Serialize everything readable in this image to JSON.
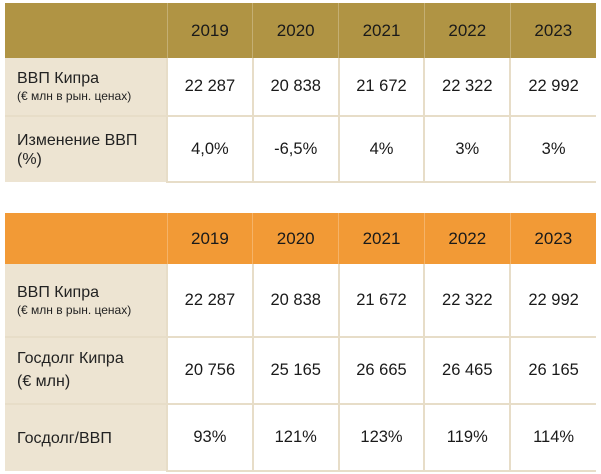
{
  "table1": {
    "years": [
      "2019",
      "2020",
      "2021",
      "2022",
      "2023"
    ],
    "rows": [
      {
        "label": "ВВП Кипра",
        "sublabel": "(€ млн в рын. ценах)",
        "values": [
          "22 287",
          "20 838",
          "21 672",
          "22 322",
          "22 992"
        ]
      },
      {
        "label": "Изменение ВВП (%)",
        "sublabel": "",
        "values": [
          "4,0%",
          "-6,5%",
          "4%",
          "3%",
          "3%"
        ]
      }
    ]
  },
  "table2": {
    "years": [
      "2019",
      "2020",
      "2021",
      "2022",
      "2023"
    ],
    "rows": [
      {
        "label": "ВВП Кипра",
        "sublabel": "(€ млн в рын. ценах)",
        "values": [
          "22 287",
          "20 838",
          "21 672",
          "22 322",
          "22 992"
        ]
      },
      {
        "label": "Госдолг Кипра",
        "sublabel": "(€ млн)",
        "values": [
          "20 756",
          "25 165",
          "26 665",
          "26 465",
          "26 165"
        ]
      },
      {
        "label": "Госдолг/ВВП",
        "sublabel": "",
        "values": [
          "93%",
          "121%",
          "123%",
          "119%",
          "114%"
        ]
      }
    ]
  },
  "colors": {
    "table1_header": "#b09444",
    "table2_header": "#f29a36",
    "label_cell": "#ede4d2"
  }
}
